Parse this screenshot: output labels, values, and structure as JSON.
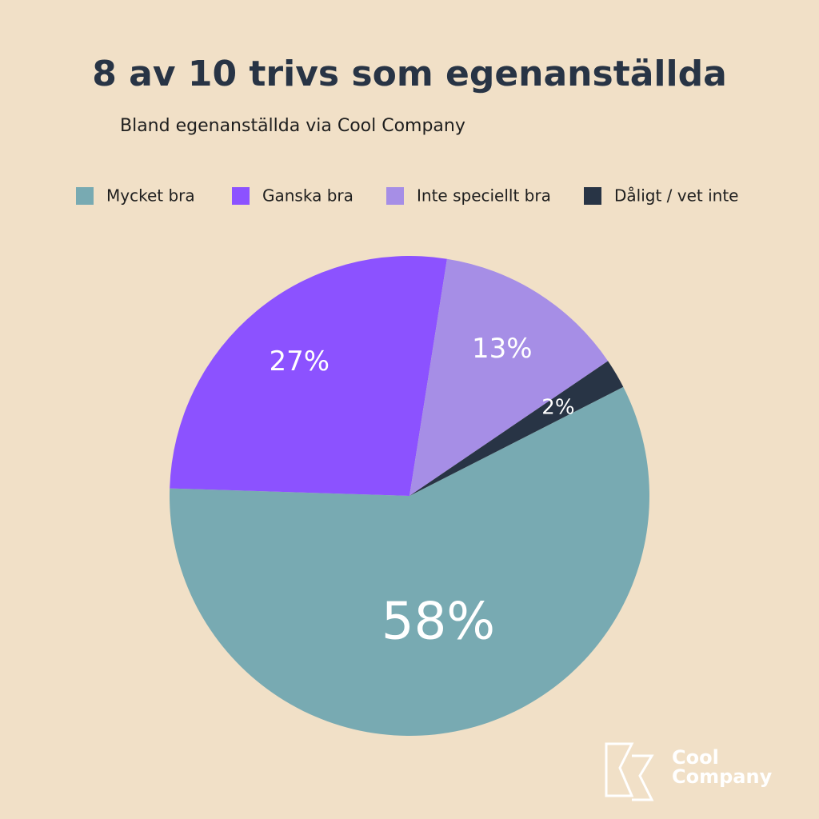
{
  "chart_data": {
    "type": "pie",
    "title": "8 av 10 trivs som egenanställda",
    "subtitle": "Bland egenanställda via Cool Company",
    "categories": [
      "Mycket bra",
      "Ganska bra",
      "Inte speciellt bra",
      "Dåligt / vet inte"
    ],
    "values": [
      58,
      27,
      13,
      2
    ],
    "value_labels": [
      "58%",
      "27%",
      "13%",
      "2%"
    ],
    "colors": [
      "#78aab2",
      "#8c52ff",
      "#a68ee6",
      "#283445"
    ],
    "legend": "top"
  },
  "logo": [
    "Cool",
    "Company"
  ]
}
